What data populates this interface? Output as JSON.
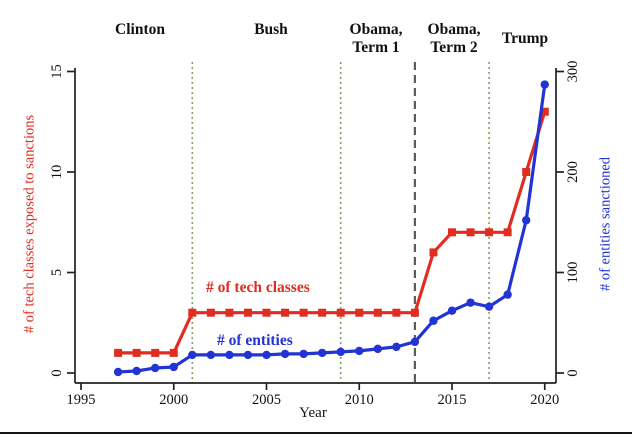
{
  "chart_data": {
    "type": "line",
    "title": "",
    "x": [
      1997,
      1998,
      1999,
      2000,
      2001,
      2002,
      2003,
      2004,
      2005,
      2006,
      2007,
      2008,
      2009,
      2010,
      2011,
      2012,
      2013,
      2014,
      2015,
      2016,
      2017,
      2018,
      2019,
      2020
    ],
    "series": [
      {
        "name": "# of tech classes exposed to sanctions",
        "axis": "left",
        "color": "#e02d20",
        "marker": "square",
        "values": [
          1,
          1,
          1,
          1,
          3,
          3,
          3,
          3,
          3,
          3,
          3,
          3,
          3,
          3,
          3,
          3,
          3,
          6,
          7,
          7,
          7,
          7,
          10,
          13
        ]
      },
      {
        "name": "# of entities sanctioned",
        "axis": "right",
        "color": "#2334d4",
        "marker": "circle",
        "values": [
          1,
          2,
          5,
          6,
          18,
          18,
          18,
          18,
          18,
          19,
          19,
          20,
          21,
          22,
          24,
          26,
          31,
          52,
          62,
          70,
          66,
          78,
          152,
          287
        ]
      }
    ],
    "axes": {
      "x": {
        "label": "Year",
        "ticks": [
          1995,
          2000,
          2005,
          2010,
          2015,
          2020
        ],
        "range": [
          1995,
          2020
        ]
      },
      "left": {
        "label": "# of tech classes exposed to sanctions",
        "color": "#e02d20",
        "ticks": [
          0,
          5,
          10,
          15
        ],
        "range": [
          0,
          15
        ]
      },
      "right": {
        "label": "# of entities sanctioned",
        "color": "#2334d4",
        "ticks": [
          0,
          100,
          200,
          300
        ],
        "range": [
          0,
          300
        ]
      }
    },
    "reference_lines": [
      {
        "year": 2001,
        "style": "dotted",
        "color": "#7fa06c"
      },
      {
        "year": 2009,
        "style": "dotted",
        "color": "#7fa06c"
      },
      {
        "year": 2013,
        "style": "dashed",
        "color": "#5c5c5c"
      },
      {
        "year": 2017,
        "style": "dotted",
        "color": "#7fa06c"
      }
    ],
    "presidents": [
      {
        "label": "Clinton",
        "label2": ""
      },
      {
        "label": "Bush",
        "label2": ""
      },
      {
        "label": "Obama,",
        "label2": "Term 1"
      },
      {
        "label": "Obama,",
        "label2": "Term 2"
      },
      {
        "label": "Trump",
        "label2": ""
      }
    ],
    "annotations": {
      "tech": "# of tech classes",
      "entities": "# of entities"
    },
    "grid": false,
    "legend_position": "in-plot-text"
  }
}
